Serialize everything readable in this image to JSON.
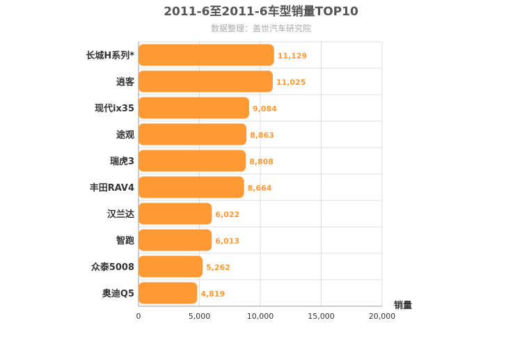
{
  "chart_data": {
    "type": "bar",
    "orientation": "horizontal",
    "title": "2011-6至2011-6车型销量TOP10",
    "subtitle": "数据整理：盖世汽车研究院",
    "xlabel": "销量",
    "ylabel": "",
    "xlim": [
      0,
      20000
    ],
    "xticks": [
      0,
      5000,
      10000,
      15000,
      20000
    ],
    "xtick_labels": [
      "0",
      "5,000",
      "10,000",
      "15,000",
      "20,000"
    ],
    "grid": true,
    "categories": [
      "长城H系列*",
      "逍客",
      "现代ix35",
      "途观",
      "瑞虎3",
      "丰田RAV4",
      "汉兰达",
      "智跑",
      "众泰5008",
      "奥迪Q5"
    ],
    "values": [
      11129,
      11025,
      9084,
      8863,
      8808,
      8664,
      6022,
      6013,
      5262,
      4819
    ],
    "value_labels": [
      "11,129",
      "11,025",
      "9,084",
      "8,863",
      "8,808",
      "8,664",
      "6,022",
      "6,013",
      "5,262",
      "4,819"
    ],
    "bar_color": "#ff9933",
    "label_color": "#ff9933"
  }
}
